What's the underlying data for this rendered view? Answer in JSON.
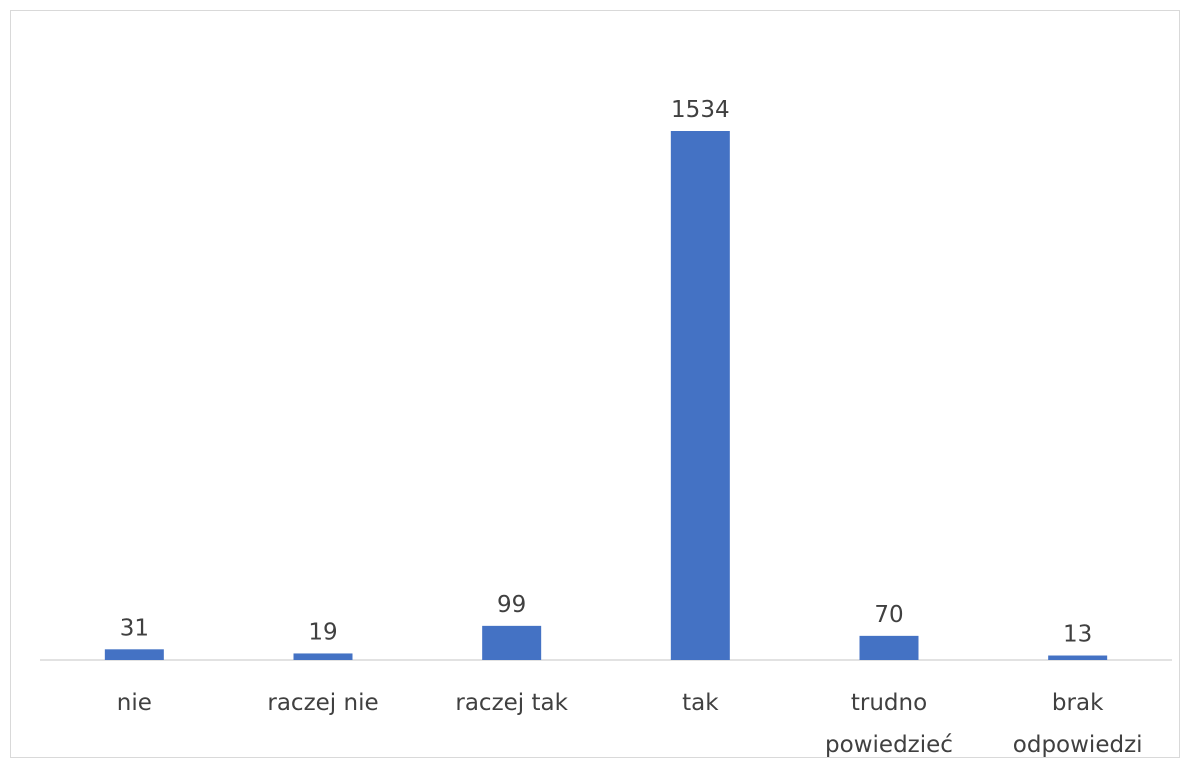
{
  "chart_data": {
    "type": "bar",
    "categories": [
      [
        "nie"
      ],
      [
        "raczej nie"
      ],
      [
        "raczej tak"
      ],
      [
        "tak"
      ],
      [
        "trudno",
        "powiedzieć"
      ],
      [
        "brak",
        "odpowiedzi"
      ]
    ],
    "values": [
      31,
      19,
      99,
      1534,
      70,
      13
    ],
    "title": "",
    "xlabel": "",
    "ylabel": "",
    "ylim": [
      0,
      1534
    ],
    "grid": false,
    "legend": "none",
    "colors": {
      "bar": "#4472C4",
      "axis": "#d9d9d9",
      "text": "#404040"
    }
  }
}
